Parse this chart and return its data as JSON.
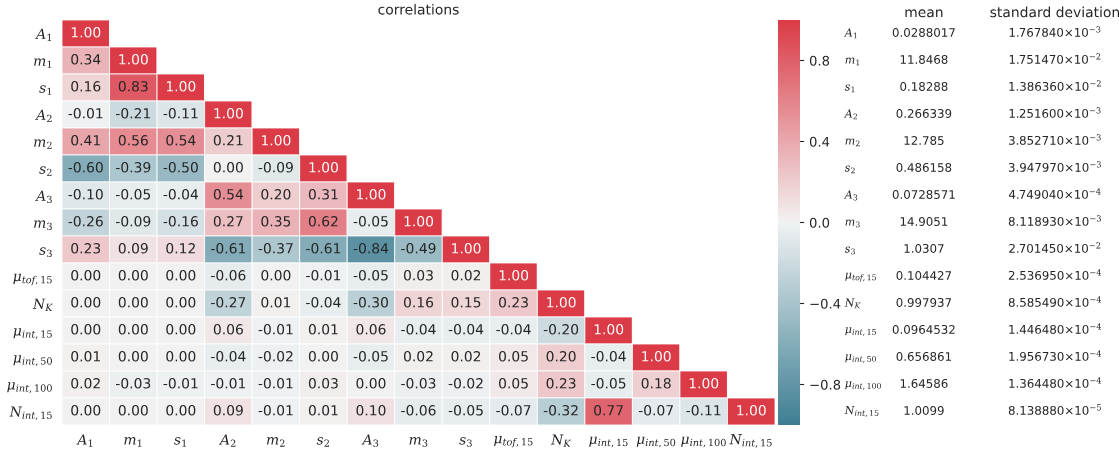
{
  "chart_data": [
    {
      "type": "heatmap",
      "title": "correlations",
      "categories": [
        "A$_{1}$",
        "m$_{1}$",
        "s$_{1}$",
        "A$_{2}$",
        "m$_{2}$",
        "s$_{2}$",
        "A$_{3}$",
        "m$_{3}$",
        "s$_{3}$",
        "μ$_{tof,15}$",
        "N$_{K}$",
        "μ$_{int,15}$",
        "μ$_{int,50}$",
        "μ$_{int,100}$",
        "N$_{int,15}$"
      ],
      "y_categories": [
        "A$_{1}$",
        "m$_{1}$",
        "s$_{1}$",
        "A$_{2}$",
        "m$_{2}$",
        "s$_{2}$",
        "A$_{3}$",
        "m$_{3}$",
        "s$_{3}$",
        "μ$_{tof,15}$",
        "N$_{K}$",
        "μ$_{int,15}$",
        "μ$_{int,50}$",
        "μ$_{int,100}$",
        "N$_{int,15}$"
      ],
      "cells": [
        [
          1.0,
          null,
          null,
          null,
          null,
          null,
          null,
          null,
          null,
          null,
          null,
          null,
          null,
          null,
          null
        ],
        [
          0.34,
          1.0,
          null,
          null,
          null,
          null,
          null,
          null,
          null,
          null,
          null,
          null,
          null,
          null,
          null
        ],
        [
          0.16,
          0.83,
          1.0,
          null,
          null,
          null,
          null,
          null,
          null,
          null,
          null,
          null,
          null,
          null,
          null
        ],
        [
          -0.01,
          -0.21,
          -0.11,
          1.0,
          null,
          null,
          null,
          null,
          null,
          null,
          null,
          null,
          null,
          null,
          null
        ],
        [
          0.41,
          0.56,
          0.54,
          0.21,
          1.0,
          null,
          null,
          null,
          null,
          null,
          null,
          null,
          null,
          null,
          null
        ],
        [
          -0.6,
          -0.39,
          -0.5,
          0.0,
          -0.09,
          1.0,
          null,
          null,
          null,
          null,
          null,
          null,
          null,
          null,
          null
        ],
        [
          -0.1,
          -0.05,
          -0.04,
          0.54,
          0.2,
          0.31,
          1.0,
          null,
          null,
          null,
          null,
          null,
          null,
          null,
          null
        ],
        [
          -0.26,
          -0.09,
          -0.16,
          0.27,
          0.35,
          0.62,
          -0.05,
          1.0,
          null,
          null,
          null,
          null,
          null,
          null,
          null
        ],
        [
          0.23,
          0.09,
          0.12,
          -0.61,
          -0.37,
          -0.61,
          -0.84,
          -0.49,
          1.0,
          null,
          null,
          null,
          null,
          null,
          null
        ],
        [
          0.0,
          0.0,
          0.0,
          -0.06,
          0.0,
          -0.01,
          -0.05,
          0.03,
          0.02,
          1.0,
          null,
          null,
          null,
          null,
          null
        ],
        [
          0.0,
          0.0,
          0.0,
          -0.27,
          0.01,
          -0.04,
          -0.3,
          0.16,
          0.15,
          0.23,
          1.0,
          null,
          null,
          null,
          null
        ],
        [
          0.0,
          0.0,
          0.0,
          0.06,
          -0.01,
          0.01,
          0.06,
          -0.04,
          -0.04,
          -0.04,
          -0.2,
          1.0,
          null,
          null,
          null
        ],
        [
          0.01,
          0.0,
          0.0,
          -0.04,
          -0.02,
          0.0,
          -0.05,
          0.02,
          0.02,
          0.05,
          0.2,
          -0.04,
          1.0,
          null,
          null
        ],
        [
          0.02,
          -0.03,
          -0.01,
          -0.01,
          -0.01,
          0.03,
          0.0,
          -0.03,
          -0.02,
          0.05,
          0.23,
          -0.05,
          0.18,
          1.0,
          null
        ],
        [
          0.0,
          0.0,
          0.0,
          0.09,
          -0.01,
          0.01,
          0.1,
          -0.06,
          -0.05,
          -0.07,
          -0.32,
          0.77,
          -0.07,
          -0.11,
          1.0
        ]
      ],
      "cell_labels": [
        [
          "1.00",
          null,
          null,
          null,
          null,
          null,
          null,
          null,
          null,
          null,
          null,
          null,
          null,
          null,
          null
        ],
        [
          "0.34",
          "1.00",
          null,
          null,
          null,
          null,
          null,
          null,
          null,
          null,
          null,
          null,
          null,
          null,
          null
        ],
        [
          "0.16",
          "0.83",
          "1.00",
          null,
          null,
          null,
          null,
          null,
          null,
          null,
          null,
          null,
          null,
          null,
          null
        ],
        [
          "-0.01",
          "-0.21",
          "-0.11",
          "1.00",
          null,
          null,
          null,
          null,
          null,
          null,
          null,
          null,
          null,
          null,
          null
        ],
        [
          "0.41",
          "0.56",
          "0.54",
          "0.21",
          "1.00",
          null,
          null,
          null,
          null,
          null,
          null,
          null,
          null,
          null,
          null
        ],
        [
          "-0.60",
          "-0.39",
          "-0.50",
          "0.00",
          "-0.09",
          "1.00",
          null,
          null,
          null,
          null,
          null,
          null,
          null,
          null,
          null
        ],
        [
          "-0.10",
          "-0.05",
          "-0.04",
          "0.54",
          "0.20",
          "0.31",
          "1.00",
          null,
          null,
          null,
          null,
          null,
          null,
          null,
          null
        ],
        [
          "-0.26",
          "-0.09",
          "-0.16",
          "0.27",
          "0.35",
          "0.62",
          "-0.05",
          "1.00",
          null,
          null,
          null,
          null,
          null,
          null,
          null
        ],
        [
          "0.23",
          "0.09",
          "0.12",
          "-0.61",
          "-0.37",
          "-0.61",
          "-0.84",
          "-0.49",
          "1.00",
          null,
          null,
          null,
          null,
          null,
          null
        ],
        [
          "0.00",
          "0.00",
          "0.00",
          "-0.06",
          "0.00",
          "-0.01",
          "-0.05",
          "0.03",
          "0.02",
          "1.00",
          null,
          null,
          null,
          null,
          null
        ],
        [
          "0.00",
          "0.00",
          "0.00",
          "-0.27",
          "0.01",
          "-0.04",
          "-0.30",
          "0.16",
          "0.15",
          "0.23",
          "1.00",
          null,
          null,
          null,
          null
        ],
        [
          "0.00",
          "0.00",
          "0.00",
          "0.06",
          "-0.01",
          "0.01",
          "0.06",
          "-0.04",
          "-0.04",
          "-0.04",
          "-0.20",
          "1.00",
          null,
          null,
          null
        ],
        [
          "0.01",
          "0.00",
          "0.00",
          "-0.04",
          "-0.02",
          "0.00",
          "-0.05",
          "0.02",
          "0.02",
          "0.05",
          "0.20",
          "-0.04",
          "1.00",
          null,
          null
        ],
        [
          "0.02",
          "-0.03",
          "-0.01",
          "-0.01",
          "-0.01",
          "0.03",
          "0.00",
          "-0.03",
          "-0.02",
          "0.05",
          "0.23",
          "-0.05",
          "0.18",
          "1.00",
          null
        ],
        [
          "0.00",
          "0.00",
          "0.00",
          "0.09",
          "-0.01",
          "0.01",
          "0.10",
          "-0.06",
          "-0.05",
          "-0.07",
          "-0.32",
          "0.77",
          "-0.07",
          "-0.11",
          "1.00"
        ]
      ],
      "clim": [
        -1,
        1
      ],
      "cticks": [
        {
          "value": -0.8,
          "label": "−0.8"
        },
        {
          "value": -0.4,
          "label": "−0.4"
        },
        {
          "value": 0,
          "label": "0.0"
        },
        0.4,
        0.8
      ]
    },
    {
      "type": "other",
      "categories": [
        "mean",
        "standard deviation"
      ],
      "y_categories": [
        "A$_{1}$",
        "m$_{1}$",
        "s$_{1}$",
        "A$_{2}$",
        "m$_{2}$",
        "s$_{2}$",
        "A$_{3}$",
        "m$_{3}$",
        "s$_{3}$",
        "μ$_{tof,15}$",
        "N$_{K}$",
        "μ$_{int,15}$",
        "μ$_{int,50}$",
        "μ$_{int,100}$",
        "N$_{int,15}$"
      ],
      "cell_labels": [
        [
          "0.0288017",
          "1.767840×10$^{−3}$"
        ],
        [
          "11.8468",
          "1.751470×10$^{−2}$"
        ],
        [
          "0.18288",
          "1.386360×10$^{−2}$"
        ],
        [
          "0.266339",
          "1.251600×10$^{−3}$"
        ],
        [
          "12.785",
          "3.852710×10$^{−3}$"
        ],
        [
          "0.486158",
          "3.947970×10$^{−3}$"
        ],
        [
          "0.0728571",
          "4.749040×10$^{−4}$"
        ],
        [
          "14.9051",
          "8.118930×10$^{−3}$"
        ],
        [
          "1.0307",
          "2.701450×10$^{−2}$"
        ],
        [
          "0.104427",
          "2.536950×10$^{−4}$"
        ],
        [
          "0.997937",
          "8.585490×10$^{−4}$"
        ],
        [
          "0.0964532",
          "1.446480×10$^{−4}$"
        ],
        [
          "0.656861",
          "1.956730×10$^{−4}$"
        ],
        [
          "1.64586",
          "1.364480×10$^{−4}$"
        ],
        [
          "1.0099",
          "8.138880×10$^{−5}$"
        ]
      ]
    }
  ]
}
